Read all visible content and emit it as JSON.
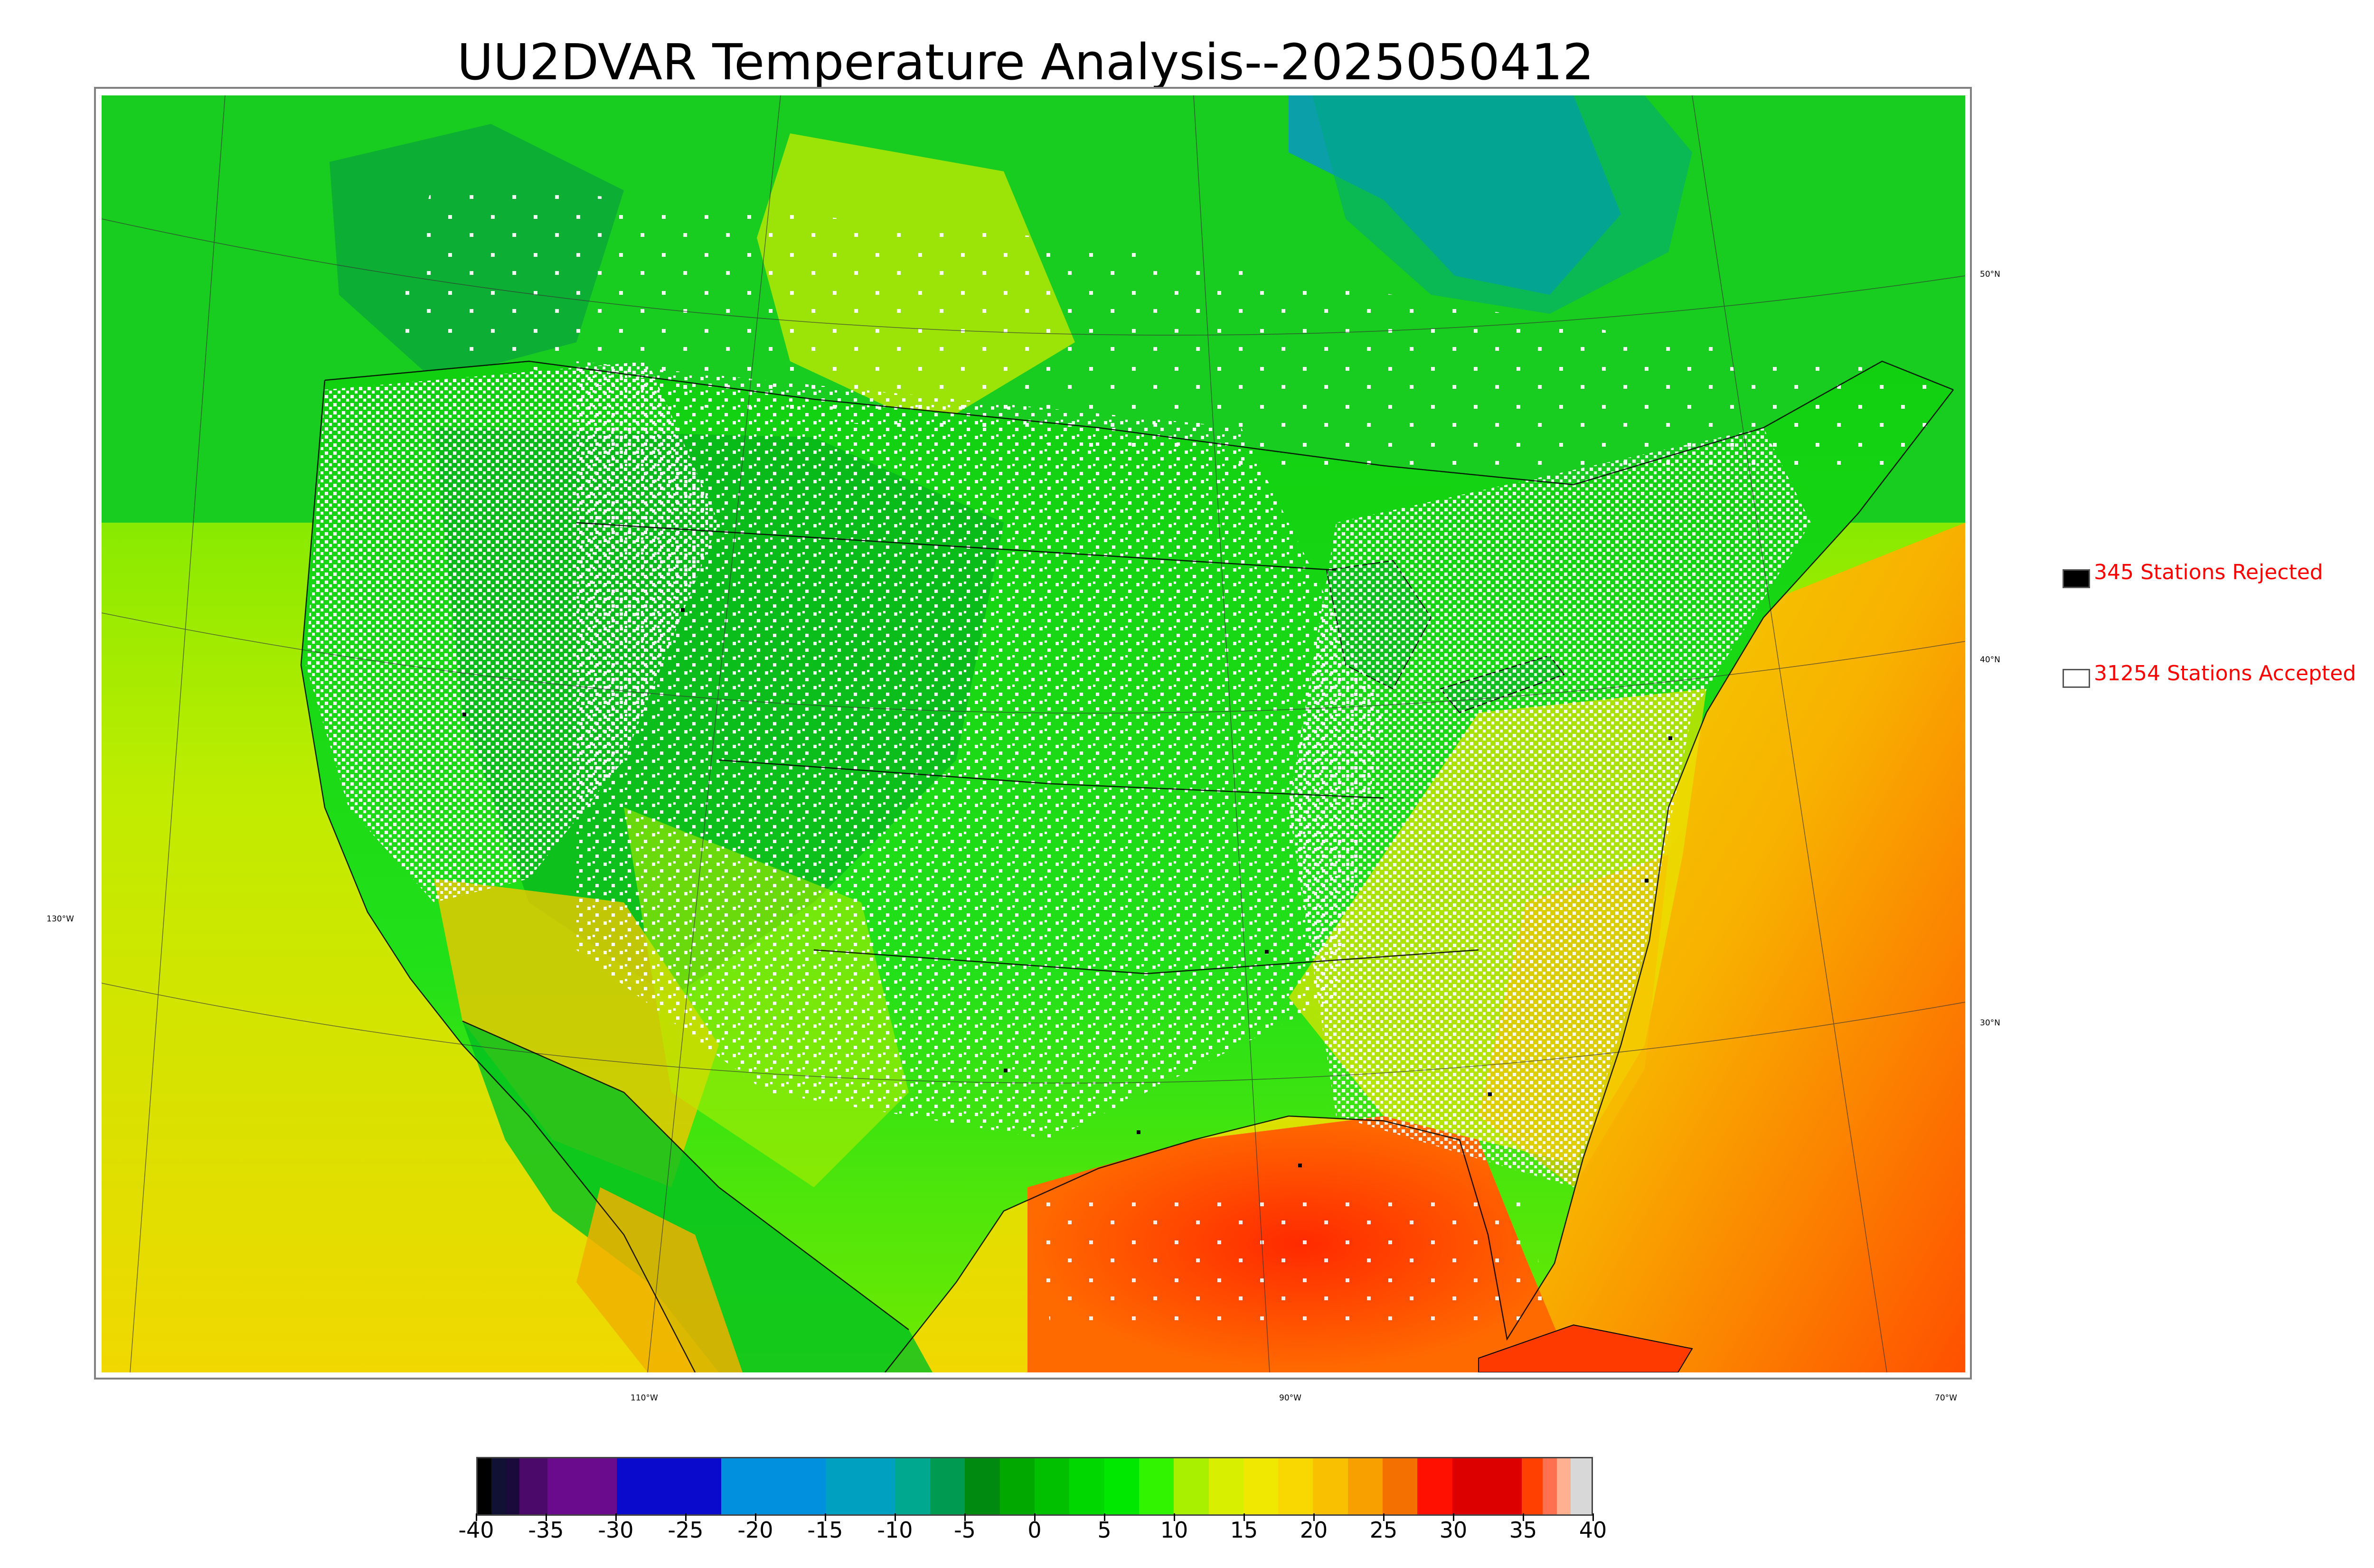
{
  "title": "UU2DVAR Temperature Analysis--2025050412",
  "grid_labels": {
    "lat_50": "50°N",
    "lat_40": "40°N",
    "lat_30": "30°N",
    "lon_130": "130°W",
    "lon_110": "110°W",
    "lon_90": "90°W",
    "lon_70": "70°W"
  },
  "legend": {
    "rejected_label": "345 Stations Rejected",
    "accepted_label": "31254 Stations Accepted",
    "rejected_color": "#000000",
    "accepted_color": "#ffffff"
  },
  "colorbar": {
    "min": -40,
    "max": 40,
    "tick_labels": [
      "-40",
      "-35",
      "-30",
      "-25",
      "-20",
      "-15",
      "-10",
      "-5",
      "0",
      "5",
      "10",
      "15",
      "20",
      "25",
      "30",
      "35",
      "40"
    ],
    "segments": [
      {
        "from": -40,
        "to": -39,
        "color": "#000000"
      },
      {
        "from": -39,
        "to": -38,
        "color": "#111133"
      },
      {
        "from": -38,
        "to": -37,
        "color": "#1a0a3c"
      },
      {
        "from": -37,
        "to": -35,
        "color": "#4b0a6a"
      },
      {
        "from": -35,
        "to": -30,
        "color": "#6a0a8c"
      },
      {
        "from": -30,
        "to": -22.5,
        "color": "#0a0acc"
      },
      {
        "from": -22.5,
        "to": -15,
        "color": "#0090dd"
      },
      {
        "from": -15,
        "to": -10,
        "color": "#00a0c0"
      },
      {
        "from": -10,
        "to": -7.5,
        "color": "#00a890"
      },
      {
        "from": -7.5,
        "to": -5,
        "color": "#009a50"
      },
      {
        "from": -5,
        "to": -2.5,
        "color": "#008a10"
      },
      {
        "from": -2.5,
        "to": 0,
        "color": "#00a800"
      },
      {
        "from": 0,
        "to": 2.5,
        "color": "#00c000"
      },
      {
        "from": 2.5,
        "to": 5,
        "color": "#00d600"
      },
      {
        "from": 5,
        "to": 7.5,
        "color": "#00e800"
      },
      {
        "from": 7.5,
        "to": 10,
        "color": "#30f400"
      },
      {
        "from": 10,
        "to": 12.5,
        "color": "#a8f000"
      },
      {
        "from": 12.5,
        "to": 15,
        "color": "#d8f000"
      },
      {
        "from": 15,
        "to": 17.5,
        "color": "#f0e800"
      },
      {
        "from": 17.5,
        "to": 20,
        "color": "#f8d800"
      },
      {
        "from": 20,
        "to": 22.5,
        "color": "#f8c000"
      },
      {
        "from": 22.5,
        "to": 25,
        "color": "#f8a000"
      },
      {
        "from": 25,
        "to": 27.5,
        "color": "#f47000"
      },
      {
        "from": 27.5,
        "to": 30,
        "color": "#ff1000"
      },
      {
        "from": 30,
        "to": 35,
        "color": "#dd0000"
      },
      {
        "from": 35,
        "to": 36.5,
        "color": "#ff4000"
      },
      {
        "from": 36.5,
        "to": 37.5,
        "color": "#ff7050"
      },
      {
        "from": 37.5,
        "to": 38.5,
        "color": "#ffb090"
      },
      {
        "from": 38.5,
        "to": 40,
        "color": "#d8d8d8"
      }
    ]
  },
  "map_colors": {
    "land_main": "#22e020",
    "land_dark": "#0aa826",
    "north_cool": "#0090c0",
    "warm_south": "#f8c800",
    "gulf_hot": "#ff5a00",
    "pacific": "#c8ec00",
    "atlantic": "#f8b400",
    "coast_line": "#000000"
  }
}
